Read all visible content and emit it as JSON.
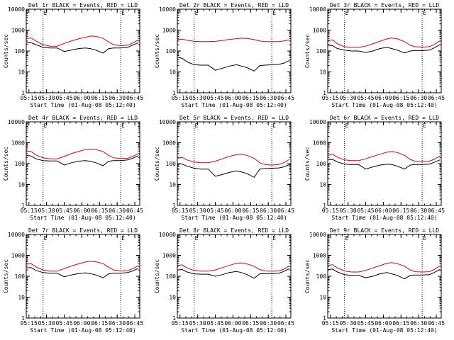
{
  "chart_data": {
    "type": "line",
    "shared": {
      "x_ticks": [
        "05:15",
        "05:30",
        "05:45",
        "06:00",
        "06:15",
        "06:30",
        "06:45"
      ],
      "x_tick_hours": [
        5.25,
        5.5,
        5.75,
        6.0,
        6.25,
        6.5,
        6.75
      ],
      "xlim_hours": [
        5.212,
        6.82
      ],
      "xlabel": "Start Time (01-Aug-08 05:12:40)",
      "ylabel": "Counts/sec",
      "y_scale": "log",
      "ylim": [
        1,
        10000
      ],
      "y_ticks": [
        "1",
        "10",
        "100",
        "1000",
        "10000"
      ],
      "y_tick_values": [
        1,
        10,
        100,
        1000,
        10000
      ],
      "event_markers": [
        {
          "label": "E",
          "hour": 5.45
        },
        {
          "label": "E",
          "hour": 6.55
        }
      ],
      "legend": {
        "black": "Events",
        "red": "LLD"
      },
      "sample_hours": [
        5.22,
        5.28,
        5.35,
        5.45,
        5.55,
        5.65,
        5.75,
        5.85,
        5.95,
        6.05,
        6.12,
        6.2,
        6.3,
        6.38,
        6.45,
        6.55,
        6.65,
        6.72,
        6.8
      ]
    },
    "panels": [
      {
        "title": "Det 1r BLACK = Events, RED = LLD",
        "series": [
          {
            "name": "Events",
            "color": "#000000",
            "values": [
              240,
              250,
              200,
              150,
              140,
              140,
              95,
              110,
              130,
              140,
              130,
              110,
              80,
              130,
              140,
              140,
              150,
              190,
              250
            ]
          },
          {
            "name": "LLD",
            "color": "#e00000",
            "values": [
              400,
              420,
              300,
              200,
              170,
              170,
              230,
              300,
              380,
              450,
              520,
              500,
              400,
              270,
              200,
              180,
              190,
              240,
              340
            ]
          }
        ]
      },
      {
        "title": "Det 2r BLACK = Events, RED = LLD",
        "series": [
          {
            "name": "Events",
            "color": "#000000",
            "values": [
              50,
              45,
              30,
              22,
              21,
              21,
              12,
              15,
              19,
              22,
              19,
              16,
              11,
              20,
              21,
              22,
              23,
              26,
              35
            ]
          },
          {
            "name": "LLD",
            "color": "#e00000",
            "values": [
              360,
              370,
              330,
              290,
              280,
              280,
              290,
              320,
              360,
              390,
              410,
              400,
              350,
              300,
              285,
              280,
              285,
              300,
              340
            ]
          }
        ]
      },
      {
        "title": "Det 3r BLACK = Events, RED = LLD",
        "series": [
          {
            "name": "Events",
            "color": "#000000",
            "values": [
              190,
              180,
              130,
              110,
              100,
              100,
              85,
              100,
              130,
              150,
              130,
              110,
              80,
              100,
              105,
              105,
              110,
              140,
              200
            ]
          },
          {
            "name": "LLD",
            "color": "#e00000",
            "values": [
              320,
              340,
              220,
              160,
              150,
              150,
              170,
              220,
              290,
              380,
              420,
              380,
              280,
              190,
              160,
              155,
              160,
              200,
              300
            ]
          }
        ]
      },
      {
        "title": "Det 4r BLACK = Events, RED = LLD",
        "series": [
          {
            "name": "Events",
            "color": "#000000",
            "values": [
              250,
              230,
              170,
              140,
              135,
              135,
              85,
              110,
              130,
              140,
              130,
              110,
              80,
              130,
              140,
              140,
              150,
              180,
              240
            ]
          },
          {
            "name": "LLD",
            "color": "#e00000",
            "values": [
              400,
              380,
              260,
              190,
              170,
              170,
              220,
              300,
              380,
              470,
              500,
              470,
              380,
              250,
              190,
              175,
              180,
              220,
              300
            ]
          }
        ]
      },
      {
        "title": "Det 5r BLACK = Events, RED = LLD",
        "series": [
          {
            "name": "Events",
            "color": "#000000",
            "values": [
              100,
              95,
              75,
              60,
              55,
              55,
              25,
              30,
              38,
              45,
              40,
              33,
              22,
              55,
              58,
              60,
              62,
              70,
              90
            ]
          },
          {
            "name": "LLD",
            "color": "#e00000",
            "values": [
              180,
              200,
              150,
              120,
              110,
              110,
              130,
              170,
              220,
              270,
              280,
              250,
              180,
              110,
              90,
              85,
              90,
              110,
              160
            ]
          }
        ]
      },
      {
        "title": "Det 6r BLACK = Events, RED = LLD",
        "series": [
          {
            "name": "Events",
            "color": "#000000",
            "values": [
              150,
              160,
              120,
              95,
              90,
              90,
              55,
              70,
              85,
              95,
              90,
              75,
              55,
              85,
              90,
              90,
              95,
              115,
              150
            ]
          },
          {
            "name": "LLD",
            "color": "#e00000",
            "values": [
              250,
              280,
              200,
              150,
              140,
              140,
              170,
              220,
              280,
              350,
              380,
              340,
              250,
              160,
              130,
              125,
              130,
              160,
              230
            ]
          }
        ]
      },
      {
        "title": "Det 7r BLACK = Events, RED = LLD",
        "series": [
          {
            "name": "Events",
            "color": "#000000",
            "values": [
              250,
              260,
              190,
              150,
              140,
              140,
              95,
              115,
              135,
              145,
              135,
              115,
              85,
              130,
              140,
              140,
              150,
              180,
              240
            ]
          },
          {
            "name": "LLD",
            "color": "#e00000",
            "values": [
              380,
              400,
              280,
              200,
              175,
              175,
              230,
              310,
              390,
              480,
              520,
              490,
              400,
              270,
              200,
              180,
              185,
              230,
              320
            ]
          }
        ]
      },
      {
        "title": "Det 8r BLACK = Events, RED = LLD",
        "series": [
          {
            "name": "Events",
            "color": "#000000",
            "values": [
              200,
              210,
              160,
              130,
              125,
              125,
              100,
              120,
              150,
              170,
              150,
              120,
              80,
              130,
              135,
              135,
              140,
              170,
              230
            ]
          },
          {
            "name": "LLD",
            "color": "#e00000",
            "values": [
              330,
              350,
              250,
              190,
              175,
              175,
              200,
              260,
              330,
              420,
              430,
              390,
              300,
              210,
              180,
              175,
              180,
              220,
              310
            ]
          }
        ]
      },
      {
        "title": "Det 9r BLACK = Events, RED = LLD",
        "series": [
          {
            "name": "Events",
            "color": "#000000",
            "values": [
              210,
              220,
              160,
              120,
              110,
              110,
              85,
              100,
              130,
              150,
              130,
              110,
              75,
              110,
              115,
              115,
              120,
              150,
              210
            ]
          },
          {
            "name": "LLD",
            "color": "#e00000",
            "values": [
              330,
              360,
              250,
              180,
              160,
              160,
              190,
              250,
              320,
              420,
              450,
              400,
              300,
              200,
              165,
              160,
              165,
              210,
              310
            ]
          }
        ]
      }
    ]
  }
}
